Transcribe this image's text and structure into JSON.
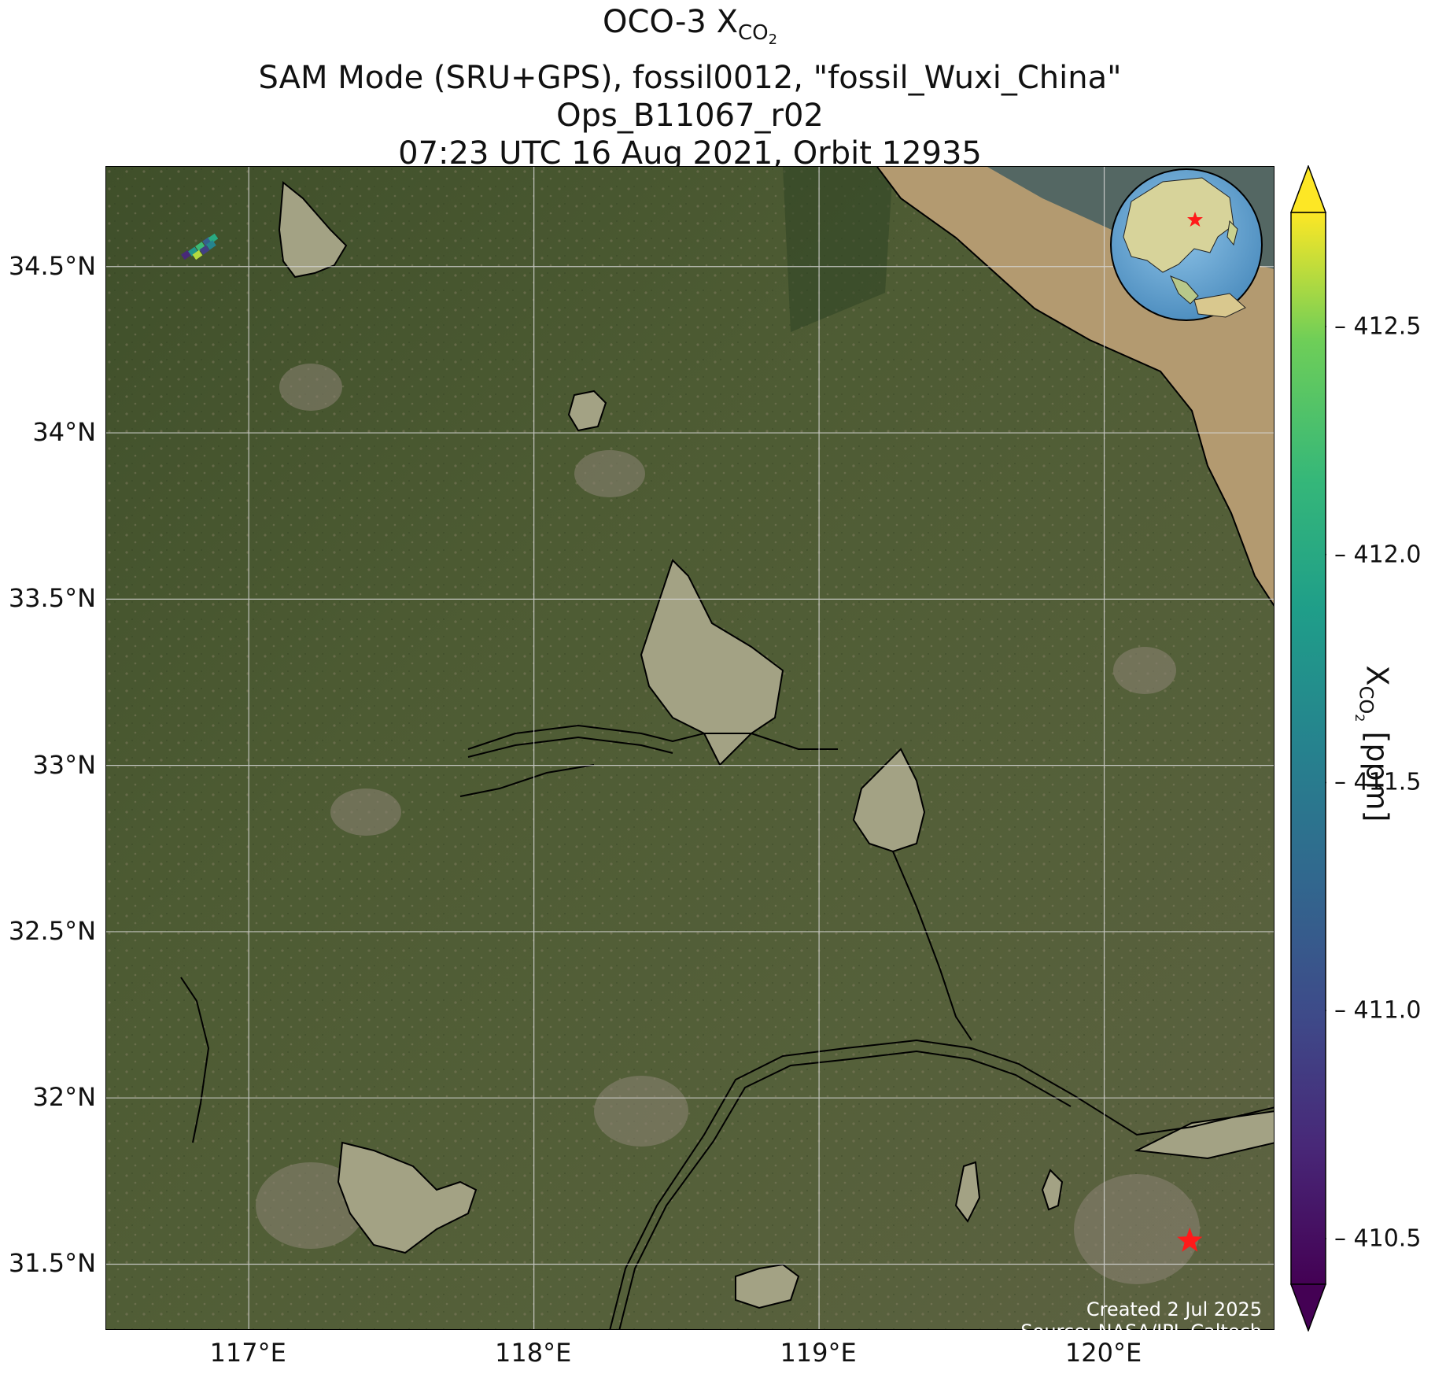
{
  "title": {
    "line1_prefix": "OCO-3 X",
    "line1_sub": "CO",
    "line1_subsub": "2",
    "line2": "SAM Mode (SRU+GPS), fossil0012, \"fossil_Wuxi_China\"",
    "line3": "Ops_B11067_r02",
    "line4": "07:23 UTC 16 Aug 2021, Orbit 12935"
  },
  "map": {
    "lon_range": [
      116.5,
      120.6
    ],
    "lat_range": [
      31.3,
      34.8
    ],
    "lat_ticks": [
      {
        "value": 34.5,
        "label": "34.5°N"
      },
      {
        "value": 34.0,
        "label": "34°N"
      },
      {
        "value": 33.5,
        "label": "33.5°N"
      },
      {
        "value": 33.0,
        "label": "33°N"
      },
      {
        "value": 32.5,
        "label": "32.5°N"
      },
      {
        "value": 32.0,
        "label": "32°N"
      },
      {
        "value": 31.5,
        "label": "31.5°N"
      }
    ],
    "lon_ticks": [
      {
        "value": 117,
        "label": "117°E"
      },
      {
        "value": 118,
        "label": "118°E"
      },
      {
        "value": 119,
        "label": "119°E"
      },
      {
        "value": 120,
        "label": "120°E"
      }
    ],
    "gridlines": true,
    "target": {
      "name": "fossil_Wuxi_China",
      "lon": 120.3,
      "lat": 31.57,
      "marker": "red-star",
      "color": "#ff1a1a"
    },
    "soundings": [
      {
        "lon": 116.78,
        "lat": 34.535,
        "xco2": 410.7
      },
      {
        "lon": 116.805,
        "lat": 34.545,
        "xco2": 411.8
      },
      {
        "lon": 116.83,
        "lat": 34.56,
        "xco2": 412.2
      },
      {
        "lon": 116.855,
        "lat": 34.575,
        "xco2": 411.2
      },
      {
        "lon": 116.875,
        "lat": 34.585,
        "xco2": 412.0
      },
      {
        "lon": 116.82,
        "lat": 34.535,
        "xco2": 412.6
      },
      {
        "lon": 116.845,
        "lat": 34.55,
        "xco2": 410.9
      },
      {
        "lon": 116.868,
        "lat": 34.565,
        "xco2": 411.6
      }
    ],
    "inset_globe": {
      "marker": "red-star",
      "position": "top-right"
    }
  },
  "colorbar": {
    "label_prefix": "X",
    "label_sub": "CO",
    "label_subsub": "2",
    "label_suffix": " [ppm]",
    "vmin": 410.4,
    "vmax": 412.75,
    "ticks": [
      {
        "value": 412.5,
        "label": "412.5"
      },
      {
        "value": 412.0,
        "label": "412.0"
      },
      {
        "value": 411.5,
        "label": "411.5"
      },
      {
        "value": 411.0,
        "label": "411.0"
      },
      {
        "value": 410.5,
        "label": "410.5"
      }
    ],
    "colormap": "viridis",
    "extend": "both"
  },
  "credit": {
    "line1": "Created 2 Jul 2025",
    "line2": "Source: NASA/JPL-Caltech"
  },
  "colors": {
    "land": "#4d5a34",
    "water_turbid": "#a3a284",
    "sea": "#b59a6d",
    "coastline": "#000000",
    "grid": "#d8d8d8"
  }
}
